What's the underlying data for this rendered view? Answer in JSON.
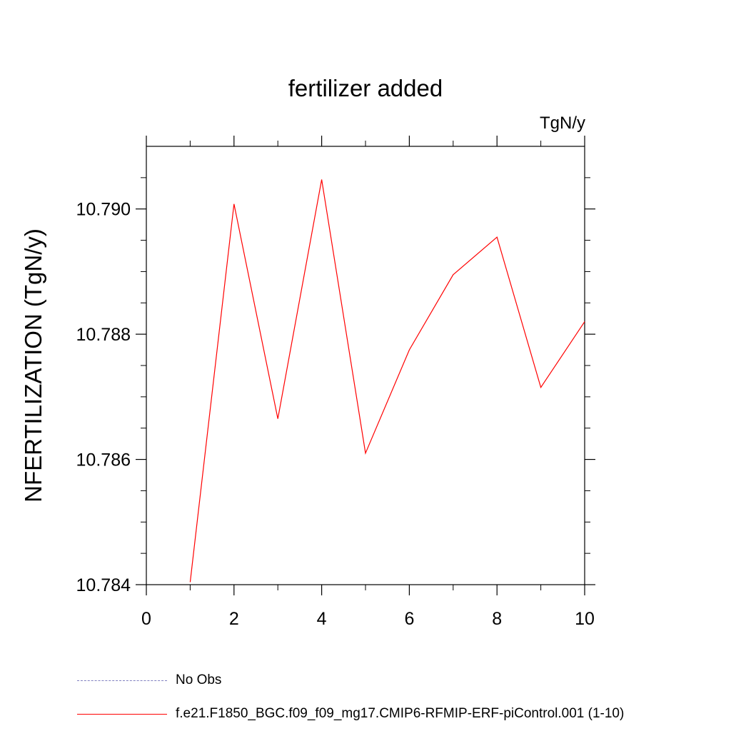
{
  "chart_data": {
    "type": "line",
    "title": "fertilizer added",
    "units_label": "TgN/y",
    "ylabel": "NFERTILIZATION  (TgN/y)",
    "xlabel": "",
    "xlim": [
      0,
      10
    ],
    "ylim": [
      10.784,
      10.791
    ],
    "x_ticks": [
      0,
      2,
      4,
      6,
      8,
      10
    ],
    "x_tick_labels": [
      "0",
      "2",
      "4",
      "6",
      "8",
      "10"
    ],
    "x_minor_ticks": [
      1,
      3,
      5,
      7,
      9
    ],
    "y_ticks": [
      10.784,
      10.786,
      10.788,
      10.79
    ],
    "y_tick_labels": [
      "10.784",
      "10.786",
      "10.788",
      "10.790"
    ],
    "y_minor_ticks": [
      10.7845,
      10.785,
      10.7855,
      10.7865,
      10.787,
      10.7875,
      10.7885,
      10.789,
      10.7895,
      10.7905
    ],
    "grid": false,
    "legend_position": "bottom-left",
    "series": [
      {
        "name": "f.e21.F1850_BGC.f09_f09_mg17.CMIP6-RFMIP-ERF-piControl.001 (1-10)",
        "color": "#ff0000",
        "style": "solid",
        "x": [
          1,
          2,
          3,
          4,
          5,
          6,
          7,
          8,
          9,
          10
        ],
        "y": [
          10.78404,
          10.79008,
          10.78665,
          10.79047,
          10.7861,
          10.78775,
          10.78895,
          10.78955,
          10.78715,
          10.7882
        ]
      }
    ],
    "legend": [
      {
        "label": "No Obs",
        "color": "#8080c0",
        "style": "dashed"
      },
      {
        "label": "f.e21.F1850_BGC.f09_f09_mg17.CMIP6-RFMIP-ERF-piControl.001 (1-10)",
        "color": "#ff0000",
        "style": "solid"
      }
    ]
  }
}
